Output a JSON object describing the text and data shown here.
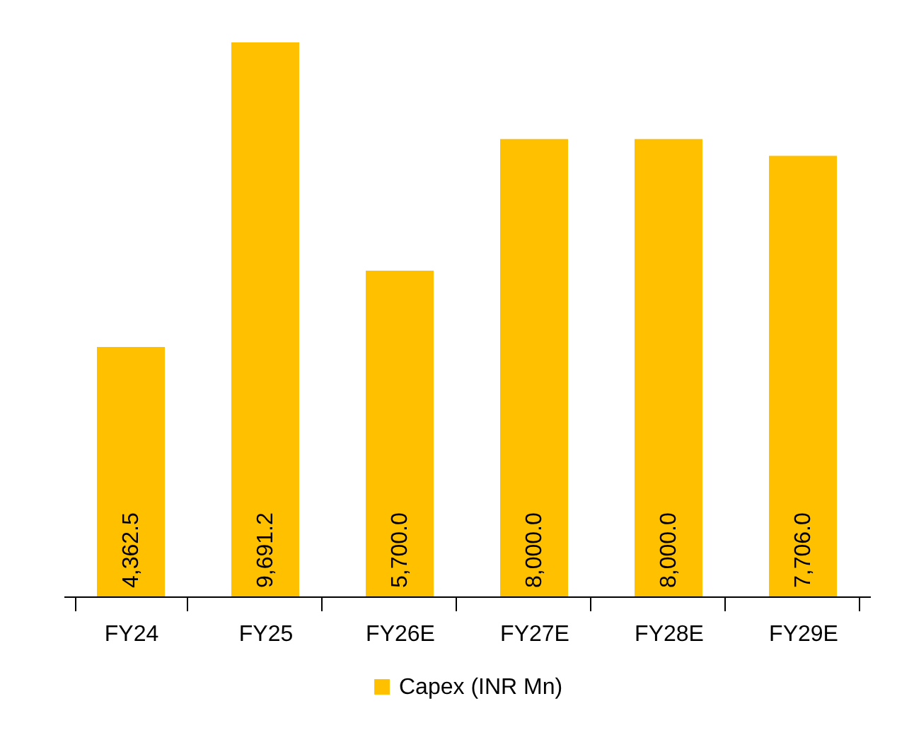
{
  "chart_data": {
    "type": "bar",
    "categories": [
      "FY24",
      "FY25",
      "FY26E",
      "FY27E",
      "FY28E",
      "FY29E"
    ],
    "series": [
      {
        "name": "Capex (INR Mn)",
        "color": "#ffc000",
        "values": [
          4362.5,
          9691.2,
          5700.0,
          8000.0,
          8000.0,
          7706.0
        ],
        "value_labels": [
          "4,362.5",
          "9,691.2",
          "5,700.0",
          "8,000.0",
          "8,000.0",
          "7,706.0"
        ]
      }
    ],
    "legend": "bottom",
    "grid": false
  }
}
